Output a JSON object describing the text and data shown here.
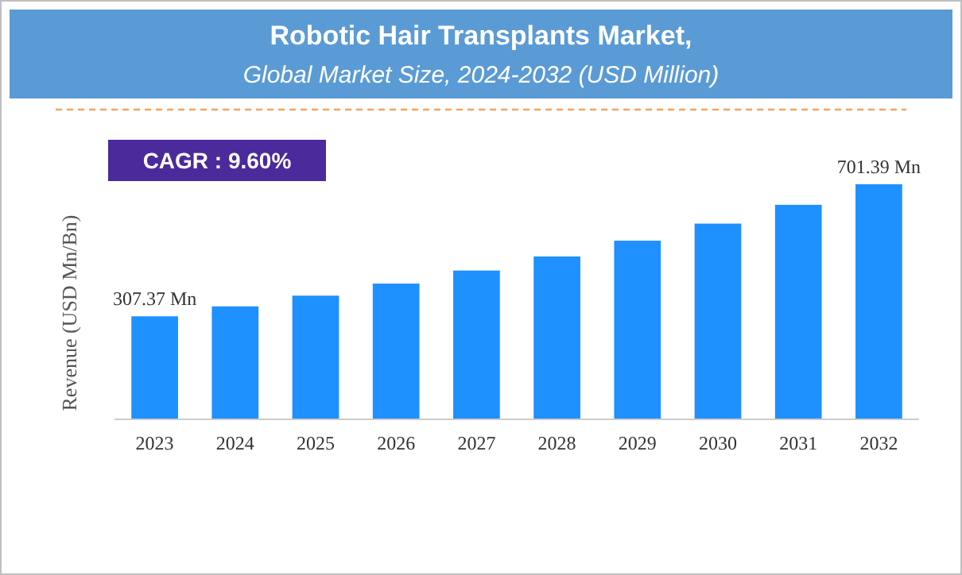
{
  "chart_data": {
    "type": "bar",
    "title": "Robotic Hair Transplants Market,",
    "subtitle": "Global Market Size, 2024-2032 (USD Million)",
    "ylabel": "Revenue (USD Mn/Bn)",
    "categories": [
      "2023",
      "2024",
      "2025",
      "2026",
      "2027",
      "2028",
      "2029",
      "2030",
      "2031",
      "2032"
    ],
    "values": [
      307.37,
      337,
      369,
      405,
      444,
      486,
      533,
      584,
      640,
      701.39
    ],
    "value_labels": [
      "307.37 Mn",
      null,
      null,
      null,
      null,
      null,
      null,
      null,
      null,
      "701.39 Mn"
    ],
    "color": "#1e90ff",
    "tick_labels": "x",
    "annotations": [
      "CAGR : 9.60%"
    ]
  }
}
